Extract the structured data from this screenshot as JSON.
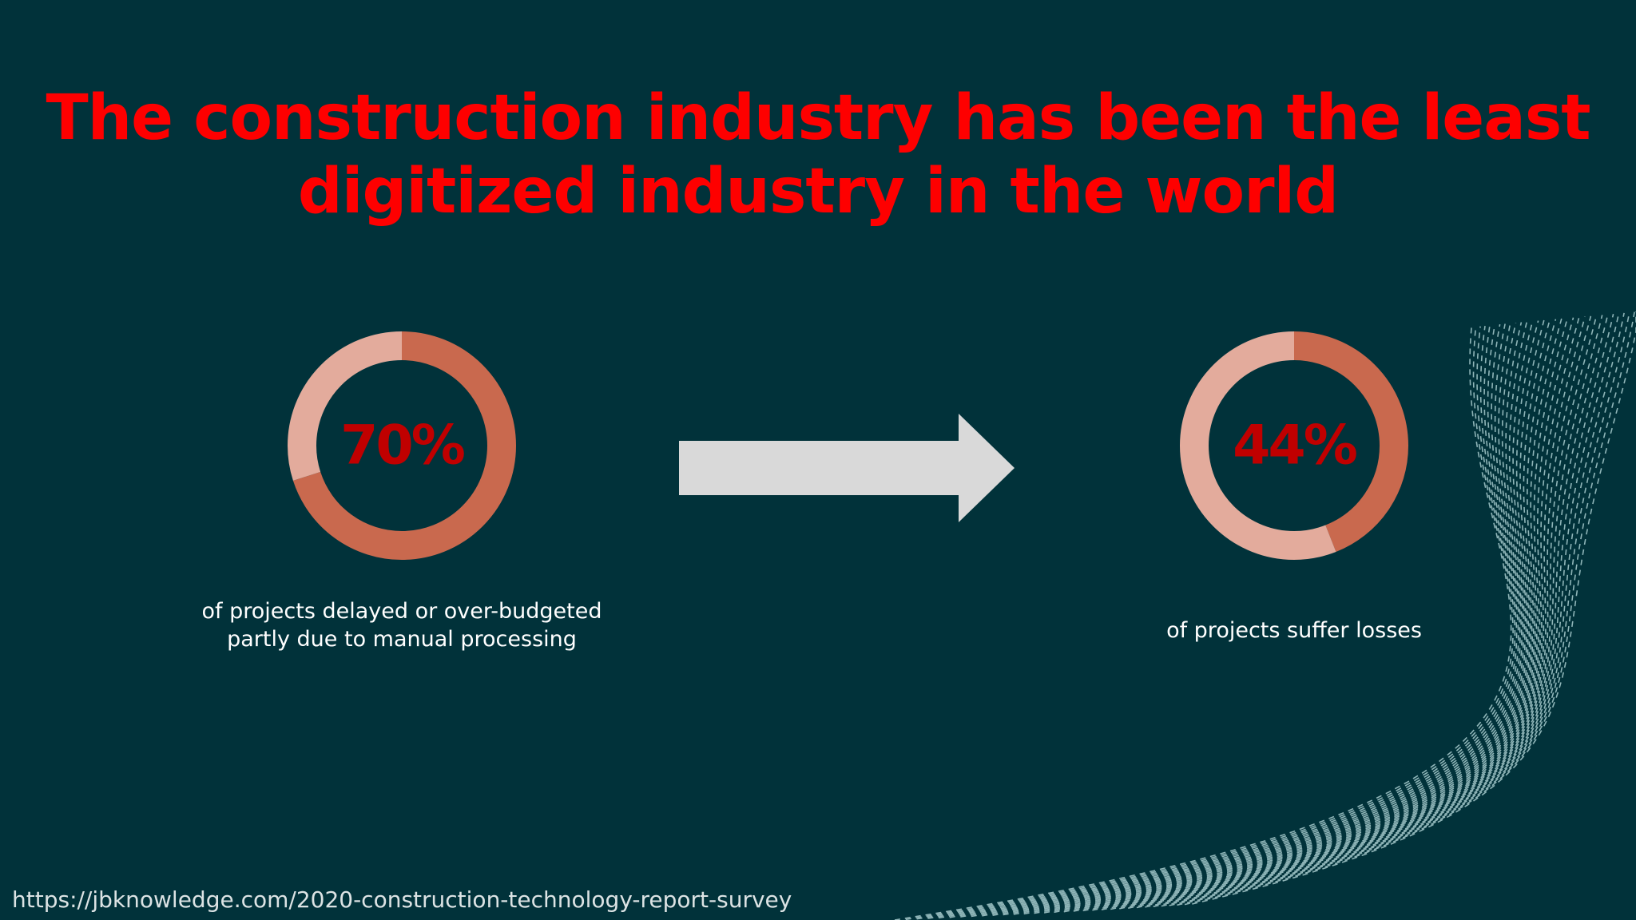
{
  "slide": {
    "title_lines": [
      "The construction industry has been the least",
      "digitized industry in the world"
    ],
    "source": "https://jbknowledge.com/2020-construction-technology-report-survey"
  },
  "colors": {
    "background": "#01323a",
    "title": "#fe0000",
    "donut_value": "#c9694e",
    "donut_remainder": "#e3ab9c",
    "donut_label": "#c00000",
    "arrow": "#d9d9d9",
    "caption": "#ffffff",
    "decoration_lines": "#9fc4c6"
  },
  "decoration": {
    "icon": "wavy-dashed-lines-graphic"
  },
  "chart_data": [
    {
      "type": "pie",
      "variant": "donut",
      "value_label": "70%",
      "values": [
        70,
        30
      ],
      "caption_lines": [
        "of projects delayed or over-budgeted",
        "partly due to manual processing"
      ]
    },
    {
      "type": "pie",
      "variant": "donut",
      "value_label": "44%",
      "values": [
        44,
        56
      ],
      "caption_lines": [
        "of projects suffer losses"
      ]
    }
  ]
}
